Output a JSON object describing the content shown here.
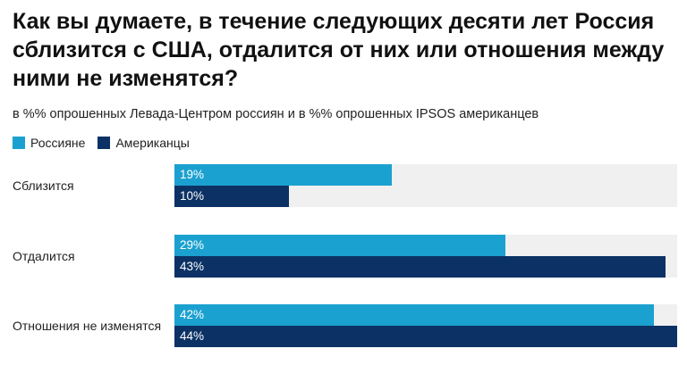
{
  "title": "Как вы думаете, в течение следующих десяти лет Россия сблизится с США, отдалится от них или отношения между ними не изменятся?",
  "subtitle": "в %% опрошенных Левада-Центром россиян и в %% опрошенных IPSOS американцев",
  "colors": {
    "series_0": "#1ba1d0",
    "series_1": "#0c3265",
    "track": "#f0f0f0"
  },
  "chart_data": {
    "type": "bar",
    "orientation": "horizontal",
    "title": "Как вы думаете, в течение следующих десяти лет Россия сблизится с США, отдалится от них или отношения между ними не изменятся?",
    "subtitle": "в %% опрошенных Левада-Центром россиян и в %% опрошенных IPSOS американцев",
    "categories": [
      "Сблизится",
      "Отдалится",
      "Отношения не изменятся"
    ],
    "series": [
      {
        "name": "Россияне",
        "values": [
          19,
          29,
          42
        ],
        "labels": [
          "19%",
          "29%",
          "42%"
        ]
      },
      {
        "name": "Американцы",
        "values": [
          10,
          43,
          44
        ],
        "labels": [
          "10%",
          "43%",
          "44%"
        ]
      }
    ],
    "xlim": [
      0,
      44
    ],
    "legend": "top-left",
    "grid": false
  }
}
